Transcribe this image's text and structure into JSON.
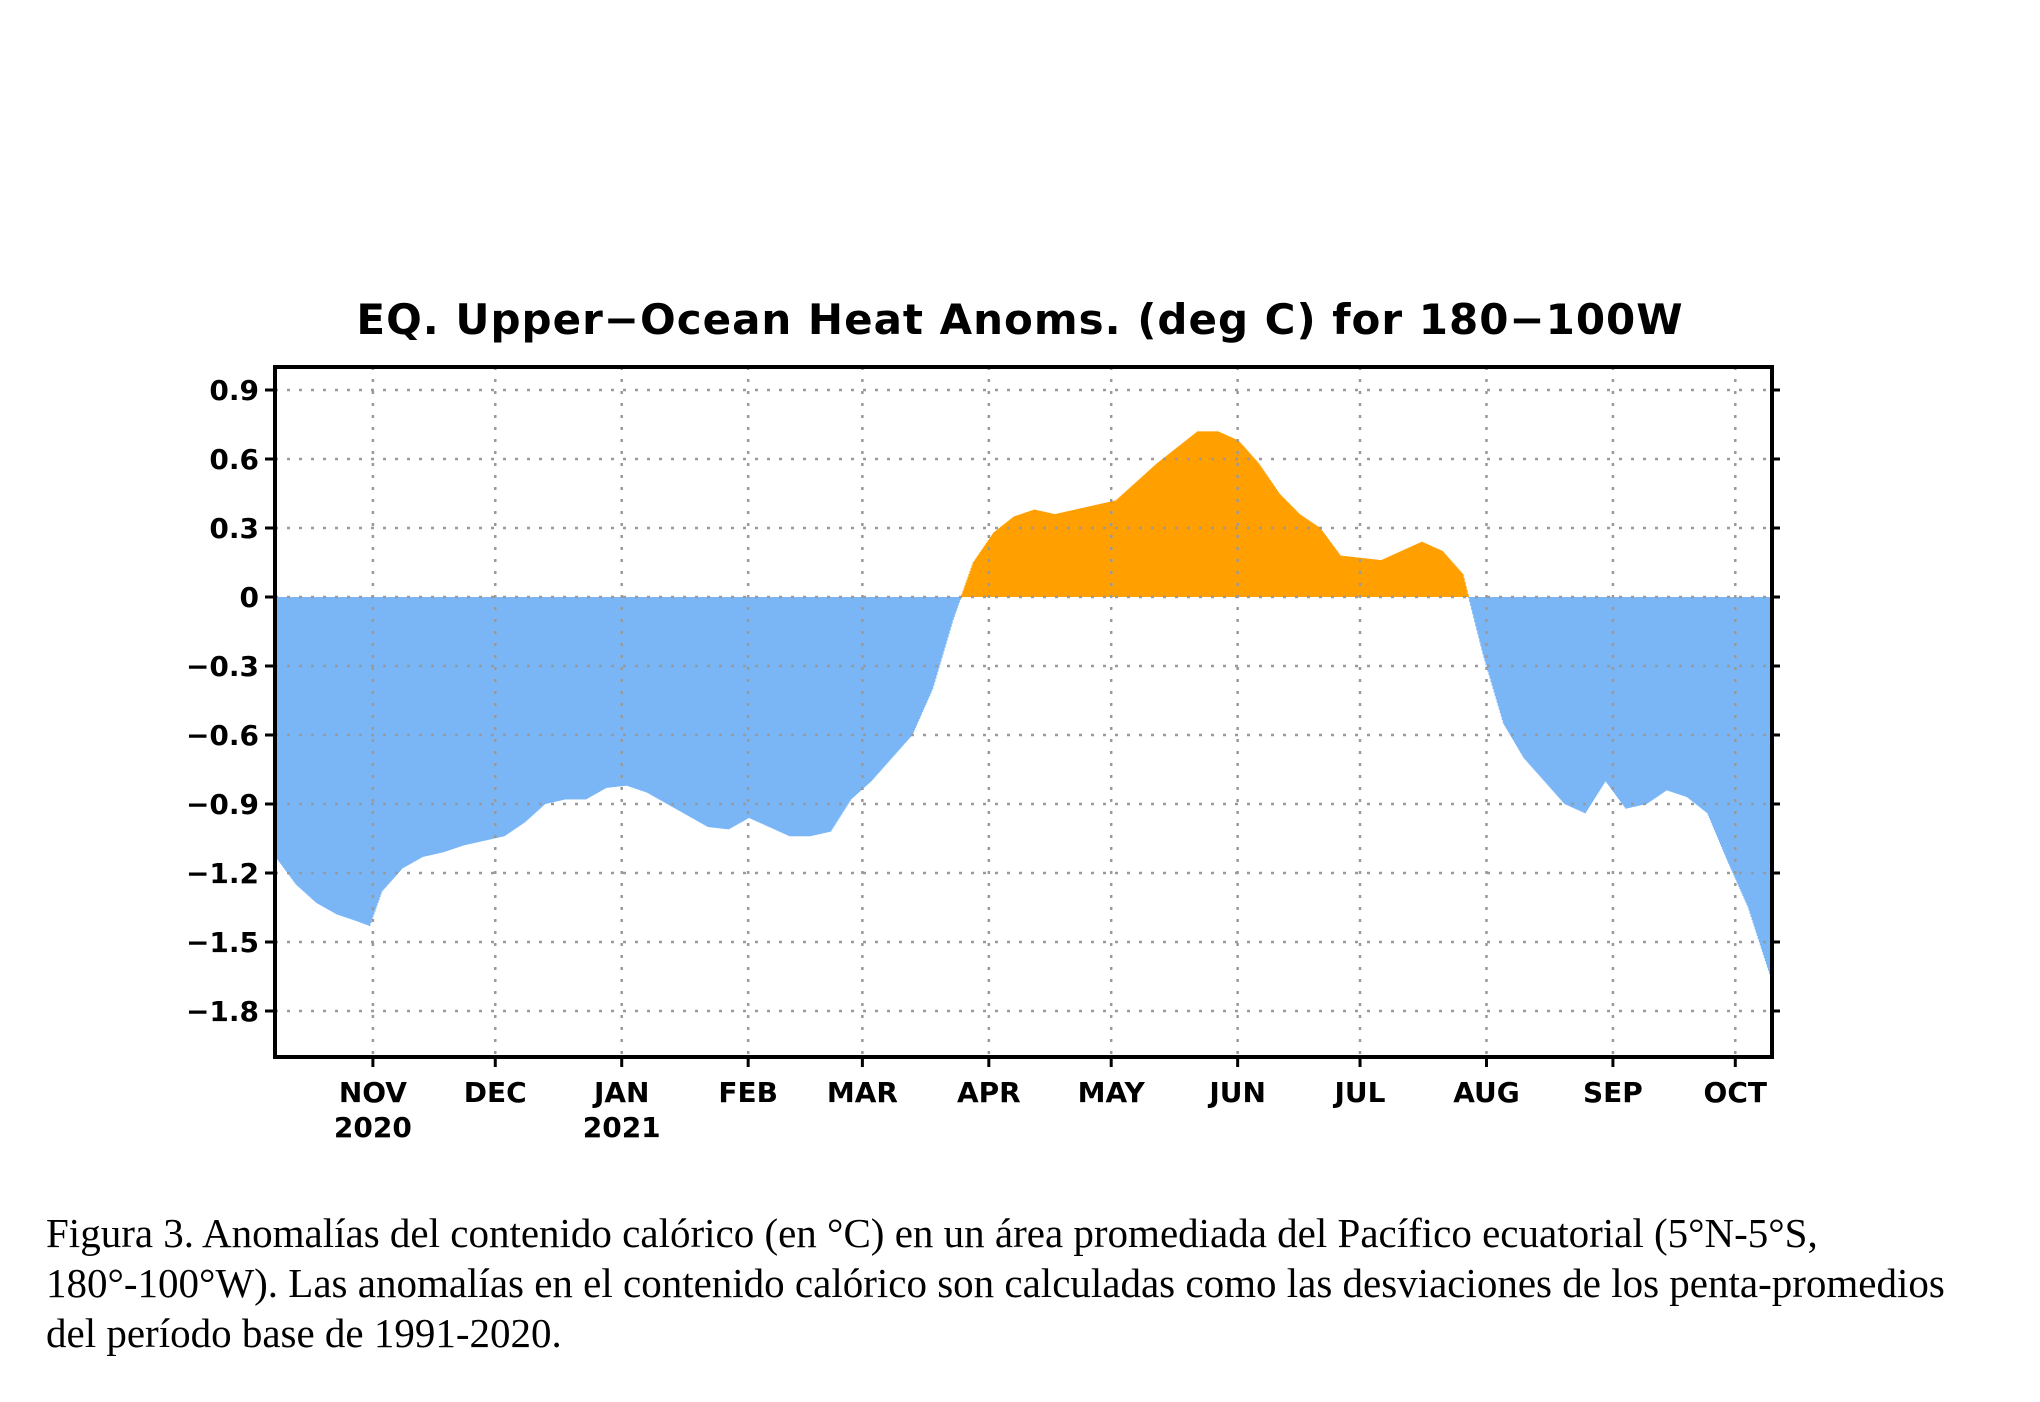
{
  "colors": {
    "positive": "#ffa000",
    "negative": "#7ab6f5",
    "grid": "#9a9a9a",
    "frame": "#000000"
  },
  "chart_data": {
    "type": "area",
    "title": "EQ. Upper−Ocean Heat Anoms. (deg C) for 180−100W",
    "xlabel": "",
    "ylabel": "",
    "ylim": [
      -2.0,
      1.0
    ],
    "yticks": [
      0.9,
      0.6,
      0.3,
      0,
      -0.3,
      -0.6,
      -0.9,
      -1.2,
      -1.5,
      -1.8
    ],
    "ytick_labels": [
      "0.9",
      "0.6",
      "0.3",
      "0",
      "−0.3",
      "−0.6",
      "−0.9",
      "−1.2",
      "−1.5",
      "−1.8"
    ],
    "xlim": [
      "2020-10-08",
      "2021-10-10"
    ],
    "xticks": [
      {
        "date": "2020-11-01",
        "label": "NOV",
        "year": "2020"
      },
      {
        "date": "2020-12-01",
        "label": "DEC",
        "year": ""
      },
      {
        "date": "2021-01-01",
        "label": "JAN",
        "year": "2021"
      },
      {
        "date": "2021-02-01",
        "label": "FEB",
        "year": ""
      },
      {
        "date": "2021-03-01",
        "label": "MAR",
        "year": ""
      },
      {
        "date": "2021-04-01",
        "label": "APR",
        "year": ""
      },
      {
        "date": "2021-05-01",
        "label": "MAY",
        "year": ""
      },
      {
        "date": "2021-06-01",
        "label": "JUN",
        "year": ""
      },
      {
        "date": "2021-07-01",
        "label": "JUL",
        "year": ""
      },
      {
        "date": "2021-08-01",
        "label": "AUG",
        "year": ""
      },
      {
        "date": "2021-09-01",
        "label": "SEP",
        "year": ""
      },
      {
        "date": "2021-10-01",
        "label": "OCT",
        "year": ""
      }
    ],
    "grid": true,
    "fill_colors": {
      "positive": "orange",
      "negative": "light blue"
    },
    "series": [
      {
        "x": [
          "2020-10-08",
          "2020-10-13",
          "2020-10-18",
          "2020-10-23",
          "2020-10-28",
          "2020-10-31",
          "2020-11-03",
          "2020-11-08",
          "2020-11-13",
          "2020-11-18",
          "2020-11-23",
          "2020-11-28",
          "2020-12-03",
          "2020-12-08",
          "2020-12-13",
          "2020-12-18",
          "2020-12-23",
          "2020-12-28",
          "2021-01-02",
          "2021-01-07",
          "2021-01-12",
          "2021-01-17",
          "2021-01-22",
          "2021-01-27",
          "2021-02-01",
          "2021-02-06",
          "2021-02-11",
          "2021-02-16",
          "2021-02-21",
          "2021-02-26",
          "2021-03-03",
          "2021-03-08",
          "2021-03-13",
          "2021-03-18",
          "2021-03-23",
          "2021-03-28",
          "2021-04-02",
          "2021-04-07",
          "2021-04-12",
          "2021-04-17",
          "2021-04-22",
          "2021-04-27",
          "2021-05-02",
          "2021-05-07",
          "2021-05-12",
          "2021-05-17",
          "2021-05-22",
          "2021-05-27",
          "2021-06-01",
          "2021-06-06",
          "2021-06-11",
          "2021-06-16",
          "2021-06-21",
          "2021-06-26",
          "2021-07-01",
          "2021-07-06",
          "2021-07-11",
          "2021-07-16",
          "2021-07-21",
          "2021-07-26",
          "2021-07-31",
          "2021-08-05",
          "2021-08-10",
          "2021-08-15",
          "2021-08-20",
          "2021-08-25",
          "2021-08-30",
          "2021-09-04",
          "2021-09-09",
          "2021-09-14",
          "2021-09-19",
          "2021-09-24",
          "2021-09-29",
          "2021-10-04",
          "2021-10-10"
        ],
        "y": [
          -1.13,
          -1.25,
          -1.33,
          -1.38,
          -1.41,
          -1.43,
          -1.28,
          -1.18,
          -1.13,
          -1.11,
          -1.08,
          -1.06,
          -1.04,
          -0.98,
          -0.9,
          -0.88,
          -0.88,
          -0.83,
          -0.82,
          -0.85,
          -0.9,
          -0.95,
          -1.0,
          -1.01,
          -0.96,
          -1.0,
          -1.04,
          -1.04,
          -1.02,
          -0.88,
          -0.8,
          -0.7,
          -0.6,
          -0.4,
          -0.1,
          0.15,
          0.28,
          0.35,
          0.38,
          0.36,
          0.38,
          0.4,
          0.42,
          0.5,
          0.58,
          0.65,
          0.72,
          0.72,
          0.68,
          0.58,
          0.45,
          0.36,
          0.3,
          0.18,
          0.17,
          0.16,
          0.2,
          0.24,
          0.2,
          0.1,
          -0.25,
          -0.55,
          -0.7,
          -0.8,
          -0.9,
          -0.94,
          -0.8,
          -0.92,
          -0.9,
          -0.84,
          -0.87,
          -0.94,
          -1.15,
          -1.35,
          -1.68
        ]
      }
    ]
  },
  "caption": "Figura 3. Anomalías del contenido calórico (en °C) en un área promediada del Pacífico ecuatorial (5°N-5°S, 180°-100°W). Las anomalías en el contenido calórico son calculadas como las desviaciones de los penta-promedios del período base de 1991-2020."
}
